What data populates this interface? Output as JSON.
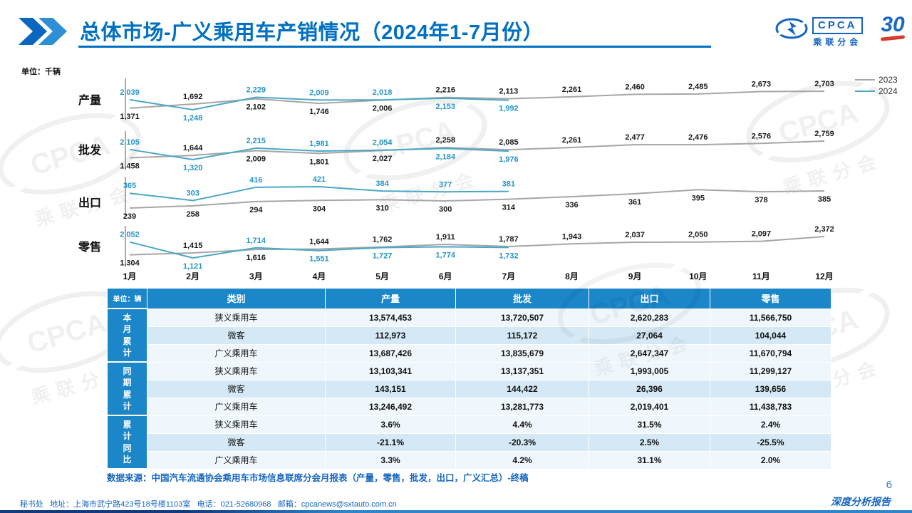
{
  "header": {
    "title": "总体市场-广义乘用车产销情况（2024年1-7月份）"
  },
  "logo": {
    "cpca": "CPCA",
    "cpca_cn": "乘联分会",
    "anniversary": "30"
  },
  "colors": {
    "accent": "#0070c0",
    "table_header": "#1b86c8",
    "stripe_light": "#f0f7fc",
    "stripe_dark": "#d4e8f5",
    "line_2023": "#a6a6a6",
    "line_2024": "#4aa8c6",
    "label_2024": "#2595c5"
  },
  "chart_data": {
    "type": "line",
    "unit_label": "单位：千辆",
    "x": [
      "1月",
      "2月",
      "3月",
      "4月",
      "5月",
      "6月",
      "7月",
      "8月",
      "9月",
      "10月",
      "11月",
      "12月"
    ],
    "legend": [
      {
        "name": "2023",
        "color": "#a6a6a6"
      },
      {
        "name": "2024",
        "color": "#4aa8c6"
      }
    ],
    "rows": [
      {
        "label": "产量",
        "series": [
          {
            "name": "2023",
            "values": [
              1371,
              1692,
              2102,
              1746,
              2006,
              2216,
              2113,
              2261,
              2460,
              2485,
              2673,
              2703
            ]
          },
          {
            "name": "2024",
            "values": [
              2039,
              1248,
              2229,
              2009,
              2018,
              2153,
              1992
            ]
          }
        ]
      },
      {
        "label": "批发",
        "series": [
          {
            "name": "2023",
            "values": [
              1458,
              1644,
              2009,
              1801,
              2027,
              2258,
              2085,
              2261,
              2477,
              2476,
              2576,
              2759
            ]
          },
          {
            "name": "2024",
            "values": [
              2105,
              1320,
              2215,
              1981,
              2054,
              2184,
              1976
            ]
          }
        ]
      },
      {
        "label": "出口",
        "series": [
          {
            "name": "2023",
            "values": [
              239,
              258,
              294,
              304,
              310,
              300,
              314,
              336,
              361,
              395,
              378,
              385
            ]
          },
          {
            "name": "2024",
            "values": [
              365,
              303,
              416,
              421,
              384,
              377,
              381
            ]
          }
        ]
      },
      {
        "label": "零售",
        "series": [
          {
            "name": "2023",
            "values": [
              1304,
              1415,
              1616,
              1644,
              1762,
              1911,
              1787,
              1943,
              2037,
              2050,
              2097,
              2372
            ]
          },
          {
            "name": "2024",
            "values": [
              2052,
              1121,
              1714,
              1551,
              1727,
              1774,
              1732
            ]
          }
        ]
      }
    ]
  },
  "table": {
    "unit_label": "单位：辆",
    "columns": [
      "类别",
      "产量",
      "批发",
      "出口",
      "零售"
    ],
    "groups": [
      {
        "label": "本月累计",
        "rows": [
          {
            "category": "狭义乘用车",
            "values": [
              "13,574,453",
              "13,720,507",
              "2,620,283",
              "11,566,750"
            ]
          },
          {
            "category": "微客",
            "values": [
              "112,973",
              "115,172",
              "27,064",
              "104,044"
            ]
          },
          {
            "category": "广义乘用车",
            "values": [
              "13,687,426",
              "13,835,679",
              "2,647,347",
              "11,670,794"
            ]
          }
        ]
      },
      {
        "label": "同期累计",
        "rows": [
          {
            "category": "狭义乘用车",
            "values": [
              "13,103,341",
              "13,137,351",
              "1,993,005",
              "11,299,127"
            ]
          },
          {
            "category": "微客",
            "values": [
              "143,151",
              "144,422",
              "26,396",
              "139,656"
            ]
          },
          {
            "category": "广义乘用车",
            "values": [
              "13,246,492",
              "13,281,773",
              "2,019,401",
              "11,438,783"
            ]
          }
        ]
      },
      {
        "label": "累计同比",
        "rows": [
          {
            "category": "狭义乘用车",
            "values": [
              "3.6%",
              "4.4%",
              "31.5%",
              "2.4%"
            ]
          },
          {
            "category": "微客",
            "values": [
              "-21.1%",
              "-20.3%",
              "2.5%",
              "-25.5%"
            ]
          },
          {
            "category": "广义乘用车",
            "values": [
              "3.3%",
              "4.2%",
              "31.1%",
              "2.0%"
            ]
          }
        ]
      }
    ]
  },
  "source_note": "数据来源：中国汽车流通协会乘用车市场信息联席分会月报表（产量，零售，批发，出口，广义汇总）-终稿",
  "footer": {
    "left": "秘书处   地址：上海市武宁路423号18号楼1103室   电话：021-52680968   邮箱：cpcanews@sxtauto.com.cn",
    "right": "深度分析报告",
    "page": "6"
  }
}
